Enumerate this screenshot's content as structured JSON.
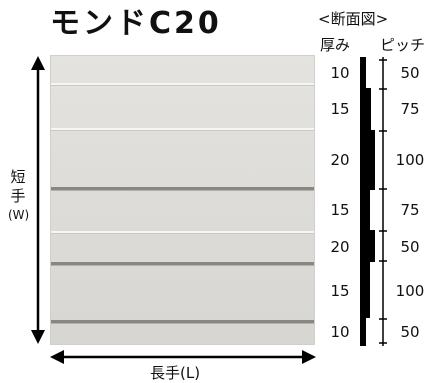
{
  "title": "モンドC20",
  "section": {
    "heading": "<断面図>",
    "thickness_header": "厚み",
    "pitch_header": "ピッチ",
    "thickness_values": [
      "10",
      "15",
      "20",
      "15",
      "20",
      "15",
      "10"
    ],
    "pitch_values": [
      "50",
      "75",
      "100",
      "75",
      "50",
      "100",
      "50"
    ]
  },
  "labels": {
    "width_chars": [
      "短",
      "手",
      "(W)"
    ],
    "length": "長手(L)"
  }
}
